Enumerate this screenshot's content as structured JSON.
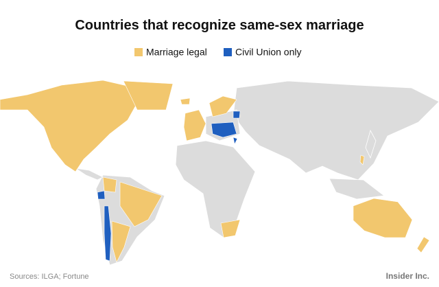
{
  "header": {
    "title": "Countries that recognize same-sex marriage"
  },
  "legend": [
    {
      "label": "Marriage legal",
      "color": "#f2c76e"
    },
    {
      "label": "Civil Union only",
      "color": "#1f5fbf"
    }
  ],
  "footer": {
    "source": "Sources: ILGA; Fortune",
    "logo": "Insider Inc."
  }
}
